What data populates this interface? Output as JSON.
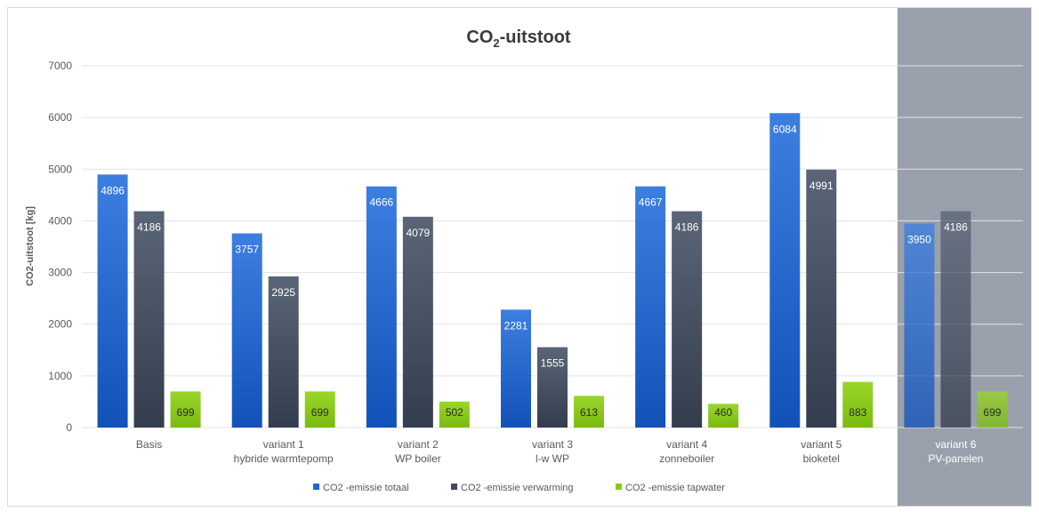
{
  "chart_data": {
    "type": "bar",
    "title": "CO",
    "title_sub": "2",
    "title_suffix": "-uitstoot",
    "ylabel": "CO2-uitstoot [kg]",
    "ylim": [
      0,
      7000
    ],
    "yticks": [
      0,
      1000,
      2000,
      3000,
      4000,
      5000,
      6000,
      7000
    ],
    "grid": true,
    "legend_position": "bottom",
    "categories": [
      [
        "Basis"
      ],
      [
        "variant 1",
        "hybride warmtepomp"
      ],
      [
        "variant 2",
        "WP boiler"
      ],
      [
        "variant 3",
        "l-w WP"
      ],
      [
        "variant 4",
        "zonneboiler"
      ],
      [
        "variant 5",
        "bioketel"
      ],
      [
        "variant 6",
        "PV-panelen"
      ]
    ],
    "highlighted_category_index": 6,
    "series": [
      {
        "name": "CO2 -emissie totaal",
        "color": "#2266cc",
        "values": [
          4896,
          3757,
          4666,
          2281,
          4667,
          6084,
          3950
        ]
      },
      {
        "name": "CO2 -emissie verwarming",
        "color": "#3f4a5c",
        "values": [
          4186,
          2925,
          4079,
          1555,
          4186,
          4991,
          4186
        ]
      },
      {
        "name": "CO2 -emissie tapwater",
        "color": "#88cc1a",
        "values": [
          699,
          699,
          502,
          613,
          460,
          883,
          699
        ]
      }
    ],
    "colors": {
      "highlight_band": "#9aa0ab",
      "grid": "#e2e2e2",
      "axis_text": "#595959",
      "title_text": "#3a3a3a"
    }
  }
}
